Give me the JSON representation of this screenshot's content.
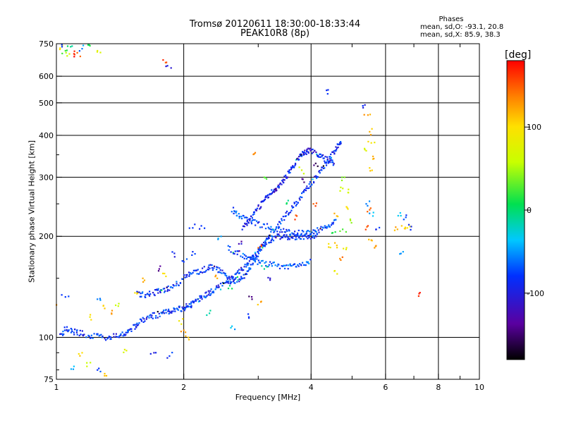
{
  "chart_data": {
    "type": "scatter",
    "title": "Tromsø 20120611 18:30:00-18:33:44",
    "subtitle": "PEAK10R8 (8p)",
    "xlabel": "Frequency [MHz]",
    "ylabel": "Stationary phase Virtual Height [km]",
    "xscale": "log",
    "yscale": "log",
    "xlim": [
      1,
      10
    ],
    "ylim": [
      75,
      750
    ],
    "xticks": [
      "1",
      "2",
      "4",
      "6",
      "8",
      "10"
    ],
    "yticks": [
      "75",
      "100",
      "200",
      "300",
      "400",
      "500",
      "600",
      "750"
    ],
    "grid": true,
    "phases": {
      "title": "Phases",
      "o_line": "mean, sd,O: -93.1, 20.8",
      "x_line": "mean, sd,X: 85.9, 38.3"
    },
    "colorbar": {
      "unit": "[deg]",
      "range": [
        -180,
        180
      ],
      "ticks": [
        "100",
        "0",
        "-100"
      ],
      "colormap": "rainbow: black(-180) -> purple -> blue(-100) -> cyan -> green(0) -> yellow(100) -> orange -> red(180)"
    },
    "traces": [
      {
        "name": "",
        "points": [
          [
            1.02,
            102
          ],
          [
            1.06,
            106
          ],
          [
            1.1,
            104
          ],
          [
            1.15,
            103
          ],
          [
            1.22,
            101
          ],
          [
            1.3,
            100
          ],
          [
            1.38,
            101
          ],
          [
            1.45,
            103
          ],
          [
            1.5,
            106
          ],
          [
            1.55,
            110
          ],
          [
            1.62,
            114
          ],
          [
            1.7,
            116
          ],
          [
            1.78,
            118
          ],
          [
            1.85,
            120
          ],
          [
            1.92,
            121
          ],
          [
            2.0,
            122
          ],
          [
            2.05,
            124
          ],
          [
            2.12,
            127
          ],
          [
            2.2,
            132
          ],
          [
            2.28,
            135
          ],
          [
            2.35,
            138
          ],
          [
            2.45,
            142
          ],
          [
            2.55,
            146
          ],
          [
            2.65,
            152
          ],
          [
            2.75,
            160
          ],
          [
            2.85,
            168
          ],
          [
            2.95,
            176
          ],
          [
            3.05,
            185
          ],
          [
            3.15,
            193
          ],
          [
            3.25,
            198
          ],
          [
            3.4,
            200
          ],
          [
            3.55,
            199
          ],
          [
            3.7,
            199
          ],
          [
            3.85,
            200
          ],
          [
            4.0,
            200
          ],
          [
            4.15,
            201
          ]
        ],
        "phase": -100
      },
      {
        "name": "",
        "points": [
          [
            1.55,
            135
          ],
          [
            1.62,
            134
          ],
          [
            1.7,
            136
          ],
          [
            1.78,
            138
          ],
          [
            1.85,
            140
          ],
          [
            1.95,
            146
          ],
          [
            2.05,
            155
          ],
          [
            2.15,
            157
          ],
          [
            2.25,
            160
          ],
          [
            2.35,
            162
          ],
          [
            2.45,
            158
          ],
          [
            2.55,
            150
          ],
          [
            2.65,
            148
          ],
          [
            2.75,
            150
          ],
          [
            2.85,
            160
          ],
          [
            2.95,
            172
          ],
          [
            3.05,
            185
          ],
          [
            3.15,
            197
          ],
          [
            3.3,
            212
          ],
          [
            3.45,
            228
          ],
          [
            3.6,
            242
          ],
          [
            3.75,
            258
          ],
          [
            3.9,
            276
          ],
          [
            4.05,
            294
          ],
          [
            4.2,
            312
          ],
          [
            4.35,
            332
          ],
          [
            4.5,
            352
          ],
          [
            4.62,
            370
          ],
          [
            4.72,
            385
          ]
        ],
        "phase": -100
      },
      {
        "name": "",
        "points": [
          [
            2.75,
            210
          ],
          [
            2.85,
            222
          ],
          [
            2.95,
            236
          ],
          [
            3.05,
            250
          ],
          [
            3.15,
            262
          ],
          [
            3.25,
            272
          ],
          [
            3.35,
            282
          ],
          [
            3.45,
            295
          ],
          [
            3.55,
            310
          ],
          [
            3.65,
            328
          ],
          [
            3.75,
            345
          ],
          [
            3.85,
            355
          ],
          [
            3.95,
            360
          ],
          [
            4.1,
            356
          ],
          [
            4.25,
            345
          ],
          [
            4.4,
            335
          ],
          [
            4.55,
            330
          ]
        ],
        "phase": -110
      },
      {
        "name": "",
        "points": [
          [
            2.6,
            240
          ],
          [
            2.7,
            232
          ],
          [
            2.85,
            225
          ],
          [
            3.0,
            218
          ],
          [
            3.2,
            212
          ],
          [
            3.4,
            208
          ],
          [
            3.6,
            205
          ],
          [
            3.8,
            204
          ],
          [
            4.0,
            205
          ],
          [
            4.2,
            210
          ],
          [
            4.4,
            216
          ],
          [
            4.6,
            222
          ]
        ],
        "phase": -95
      },
      {
        "name": "",
        "points": [
          [
            2.55,
            185
          ],
          [
            2.7,
            178
          ],
          [
            2.85,
            172
          ],
          [
            3.0,
            168
          ],
          [
            3.2,
            165
          ],
          [
            3.4,
            163
          ],
          [
            3.6,
            163
          ],
          [
            3.8,
            165
          ],
          [
            4.0,
            170
          ]
        ],
        "phase": -90
      }
    ],
    "scattered_points": [
      [
        1.02,
        728,
        100
      ],
      [
        1.05,
        715,
        20
      ],
      [
        1.08,
        735,
        -20
      ],
      [
        1.12,
        705,
        150
      ],
      [
        1.06,
        690,
        60
      ],
      [
        1.15,
        725,
        -80
      ],
      [
        1.2,
        740,
        10
      ],
      [
        1.25,
        715,
        80
      ],
      [
        1.03,
        745,
        -100
      ],
      [
        1.1,
        700,
        170
      ],
      [
        1.82,
        660,
        160
      ],
      [
        1.83,
        645,
        -110
      ],
      [
        4.35,
        545,
        -105
      ],
      [
        5.3,
        490,
        -100
      ],
      [
        5.45,
        460,
        130
      ],
      [
        5.5,
        410,
        120
      ],
      [
        5.55,
        380,
        95
      ],
      [
        5.6,
        340,
        110
      ],
      [
        5.5,
        320,
        105
      ],
      [
        5.4,
        360,
        75
      ],
      [
        4.8,
        300,
        40
      ],
      [
        4.7,
        280,
        60
      ],
      [
        4.9,
        270,
        80
      ],
      [
        4.85,
        245,
        100
      ],
      [
        4.6,
        230,
        120
      ],
      [
        4.95,
        225,
        50
      ],
      [
        4.75,
        210,
        20
      ],
      [
        4.5,
        205,
        10
      ],
      [
        4.4,
        190,
        95
      ],
      [
        4.6,
        188,
        110
      ],
      [
        4.85,
        185,
        90
      ],
      [
        4.7,
        170,
        140
      ],
      [
        4.55,
        158,
        80
      ],
      [
        5.4,
        250,
        -80
      ],
      [
        5.5,
        240,
        150
      ],
      [
        5.6,
        230,
        -60
      ],
      [
        5.45,
        215,
        160
      ],
      [
        5.7,
        210,
        -100
      ],
      [
        5.55,
        195,
        120
      ],
      [
        5.65,
        185,
        130
      ],
      [
        6.5,
        235,
        -60
      ],
      [
        6.7,
        228,
        -90
      ],
      [
        6.55,
        215,
        110
      ],
      [
        6.75,
        212,
        95
      ],
      [
        6.9,
        214,
        -110
      ],
      [
        6.4,
        210,
        120
      ],
      [
        7.2,
        135,
        170
      ],
      [
        6.6,
        180,
        -70
      ],
      [
        1.0,
        125,
        130
      ],
      [
        1.05,
        132,
        -100
      ],
      [
        1.25,
        130,
        -80
      ],
      [
        1.55,
        135,
        95
      ],
      [
        1.3,
        122,
        110
      ],
      [
        1.35,
        118,
        140
      ],
      [
        1.4,
        124,
        60
      ],
      [
        1.2,
        115,
        90
      ],
      [
        1.15,
        90,
        100
      ],
      [
        1.18,
        84,
        60
      ],
      [
        1.25,
        80,
        -100
      ],
      [
        1.3,
        78,
        110
      ],
      [
        1.45,
        92,
        80
      ],
      [
        1.7,
        90,
        -120
      ],
      [
        1.85,
        88,
        -100
      ],
      [
        1.1,
        82,
        -60
      ],
      [
        2.0,
        105,
        130
      ],
      [
        2.05,
        100,
        110
      ],
      [
        1.95,
        112,
        90
      ],
      [
        2.3,
        118,
        -30
      ],
      [
        2.6,
        108,
        -60
      ],
      [
        2.85,
        115,
        -100
      ],
      [
        3.05,
        128,
        120
      ],
      [
        2.9,
        130,
        -150
      ],
      [
        3.0,
        185,
        150
      ],
      [
        3.1,
        160,
        -20
      ],
      [
        3.2,
        150,
        -120
      ],
      [
        2.95,
        355,
        140
      ],
      [
        3.1,
        300,
        30
      ],
      [
        3.3,
        275,
        -140
      ],
      [
        3.5,
        250,
        -10
      ],
      [
        3.7,
        230,
        160
      ],
      [
        2.4,
        150,
        120
      ],
      [
        2.55,
        140,
        -10
      ],
      [
        2.7,
        190,
        -130
      ],
      [
        2.45,
        200,
        -70
      ],
      [
        3.8,
        315,
        70
      ],
      [
        3.85,
        290,
        -150
      ],
      [
        4.05,
        250,
        150
      ],
      [
        4.1,
        330,
        -160
      ],
      [
        1.6,
        150,
        120
      ],
      [
        1.75,
        160,
        -140
      ],
      [
        1.8,
        155,
        100
      ],
      [
        2.1,
        212,
        -100
      ],
      [
        2.2,
        215,
        -100
      ],
      [
        1.9,
        178,
        -110
      ],
      [
        2.0,
        168,
        -100
      ],
      [
        2.1,
        180,
        -105
      ]
    ]
  }
}
